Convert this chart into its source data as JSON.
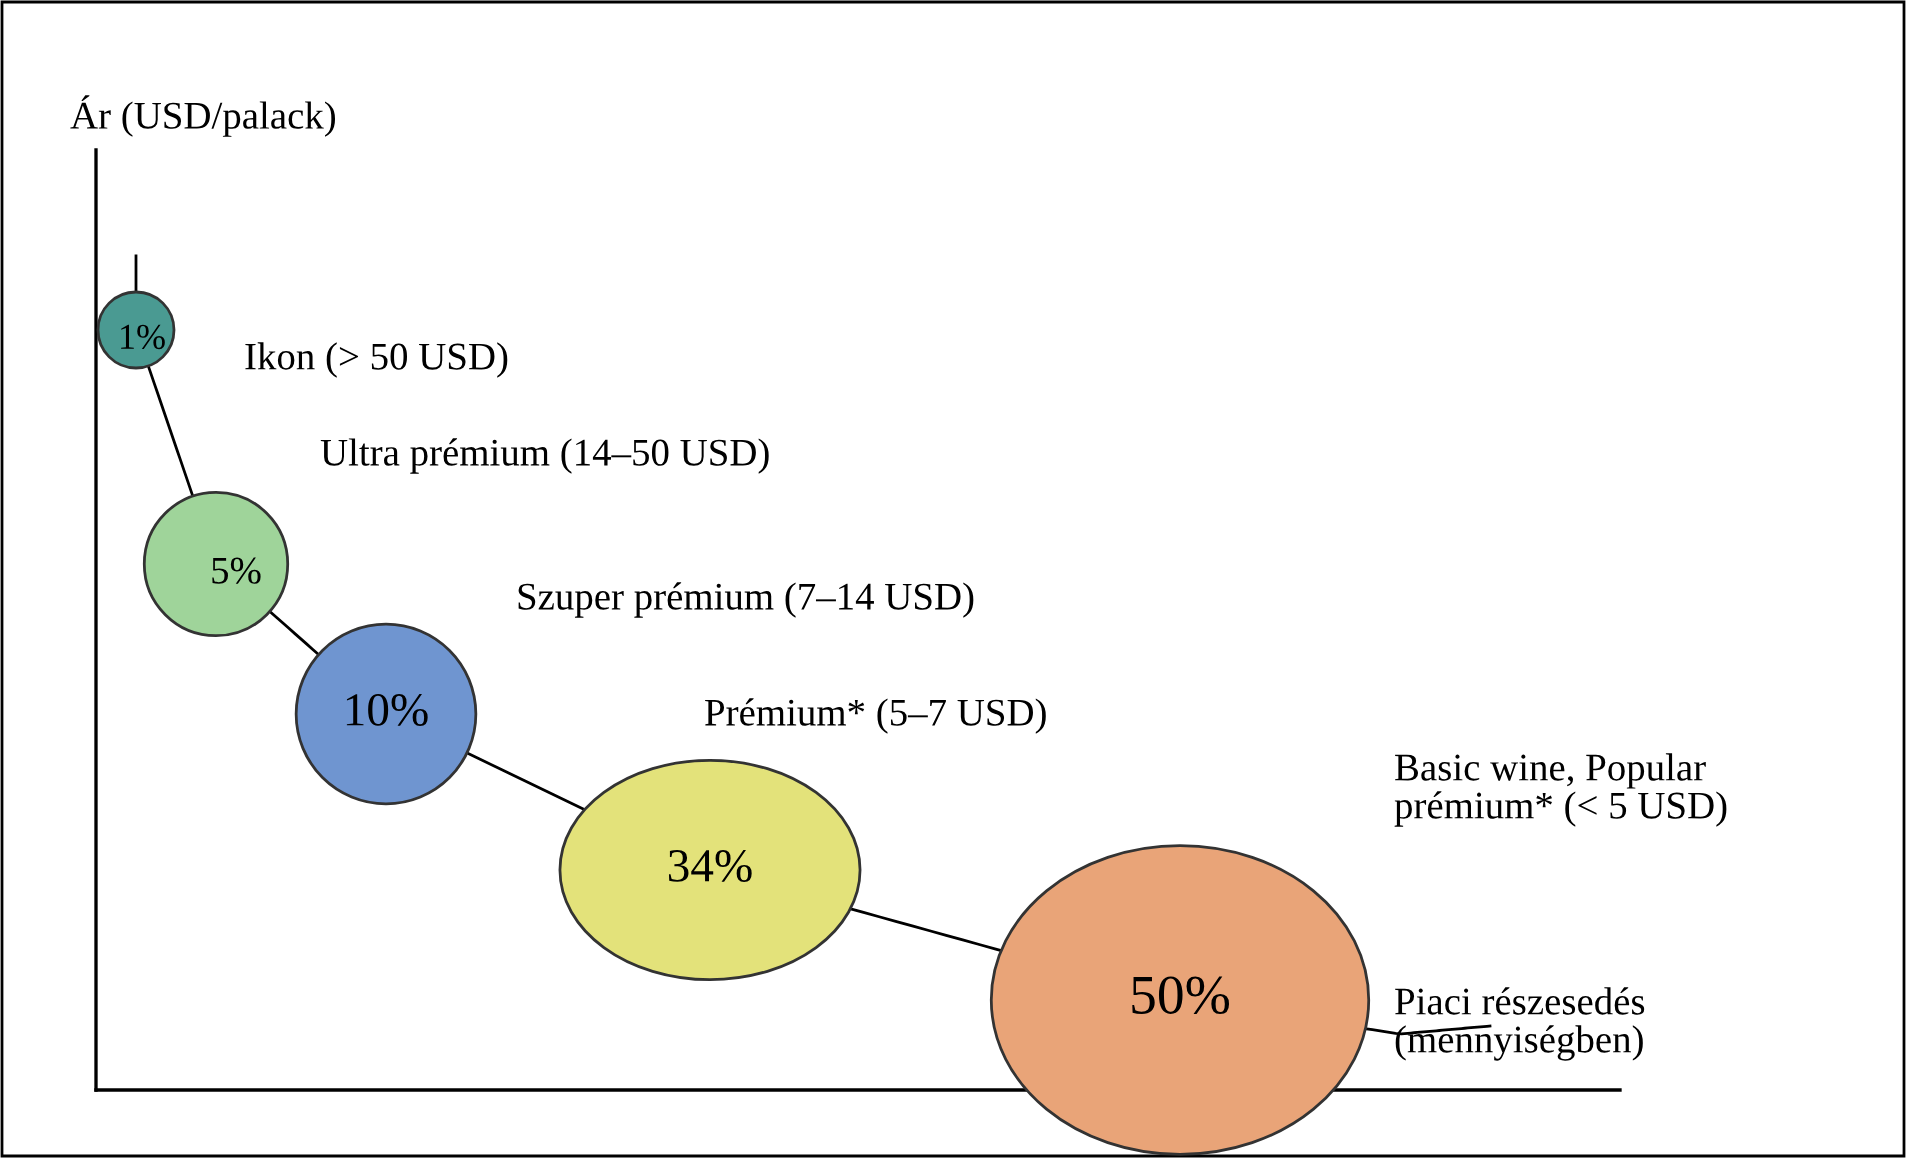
{
  "chart_data": {
    "type": "other",
    "ylabel": "Ár (USD/palack)",
    "xlabel": "Piaci részesedés\n(mennyiségben)",
    "categories": [
      "Ikon (> 50 USD)",
      "Ultra prémium (14–50 USD)",
      "Szuper prémium (7–14 USD)",
      "Prémium* (5–7 USD)",
      "Basic wine, Popular\nprémium* (< 5 USD)"
    ],
    "values": [
      1,
      5,
      10,
      34,
      50
    ],
    "value_labels": [
      "1%",
      "5%",
      "10%",
      "34%",
      "50%"
    ],
    "colors": [
      "#4a9a92",
      "#9fd49a",
      "#6f95d0",
      "#e3e27a",
      "#e9a478"
    ]
  }
}
